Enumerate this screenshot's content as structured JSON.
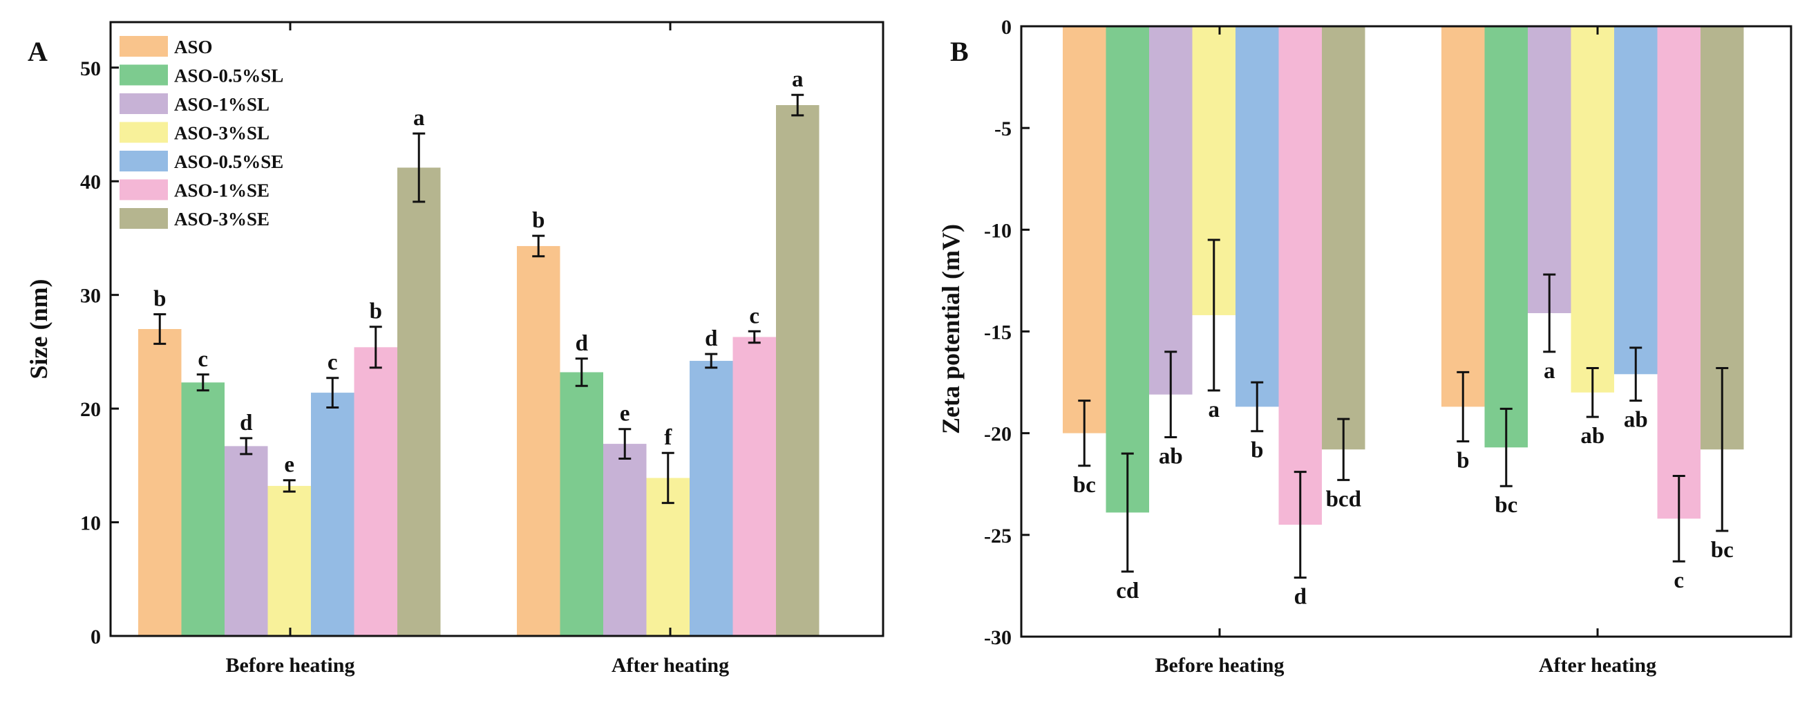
{
  "chart_data": [
    {
      "panel_label": "A",
      "type": "bar",
      "categories": [
        "Before heating",
        "After heating"
      ],
      "ylabel": "Size (nm)",
      "ylim": [
        0,
        54
      ],
      "yticks": [
        0,
        10,
        20,
        30,
        40,
        50
      ],
      "legend": {
        "placement": "top-left"
      },
      "series": [
        {
          "name": "ASO",
          "color": "#f9c48c",
          "values": [
            27.0,
            34.3
          ],
          "errors": [
            1.3,
            0.9
          ],
          "letters": [
            "b",
            "b"
          ]
        },
        {
          "name": "ASO-0.5%SL",
          "color": "#7dcb8f",
          "values": [
            22.3,
            23.2
          ],
          "errors": [
            0.7,
            1.2
          ],
          "letters": [
            "c",
            "d"
          ]
        },
        {
          "name": "ASO-1%SL",
          "color": "#c7b2d6",
          "values": [
            16.7,
            16.9
          ],
          "errors": [
            0.7,
            1.3
          ],
          "letters": [
            "d",
            "e"
          ]
        },
        {
          "name": "ASO-3%SL",
          "color": "#f8f19a",
          "values": [
            13.2,
            13.9
          ],
          "errors": [
            0.5,
            2.2
          ],
          "letters": [
            "e",
            "f"
          ]
        },
        {
          "name": "ASO-0.5%SE",
          "color": "#94bbe4",
          "values": [
            21.4,
            24.2
          ],
          "errors": [
            1.3,
            0.6
          ],
          "letters": [
            "c",
            "d"
          ]
        },
        {
          "name": "ASO-1%SE",
          "color": "#f4b7d6",
          "values": [
            25.4,
            26.3
          ],
          "errors": [
            1.8,
            0.5
          ],
          "letters": [
            "b",
            "c"
          ]
        },
        {
          "name": "ASO-3%SE",
          "color": "#b5b58f",
          "values": [
            41.2,
            46.7
          ],
          "errors": [
            3.0,
            0.9
          ],
          "letters": [
            "a",
            "a"
          ]
        }
      ]
    },
    {
      "panel_label": "B",
      "type": "bar",
      "categories": [
        "Before heating",
        "After heating"
      ],
      "ylabel": "Zeta potential (mV)",
      "ylim": [
        -30,
        0
      ],
      "yticks": [
        -30,
        -25,
        -20,
        -15,
        -10,
        -5,
        0
      ],
      "series": [
        {
          "name": "ASO",
          "color": "#f9c48c",
          "values": [
            -20.0,
            -18.7
          ],
          "errors": [
            1.6,
            1.7
          ],
          "letters": [
            "bc",
            "b"
          ]
        },
        {
          "name": "ASO-0.5%SL",
          "color": "#7dcb8f",
          "values": [
            -23.9,
            -20.7
          ],
          "errors": [
            2.9,
            1.9
          ],
          "letters": [
            "cd",
            "bc"
          ]
        },
        {
          "name": "ASO-1%SL",
          "color": "#c7b2d6",
          "values": [
            -18.1,
            -14.1
          ],
          "errors": [
            2.1,
            1.9
          ],
          "letters": [
            "ab",
            "a"
          ]
        },
        {
          "name": "ASO-3%SL",
          "color": "#f8f19a",
          "values": [
            -14.2,
            -18.0
          ],
          "errors": [
            3.7,
            1.2
          ],
          "letters": [
            "a",
            "ab"
          ]
        },
        {
          "name": "ASO-0.5%SE",
          "color": "#94bbe4",
          "values": [
            -18.7,
            -17.1
          ],
          "errors": [
            1.2,
            1.3
          ],
          "letters": [
            "b",
            "ab"
          ]
        },
        {
          "name": "ASO-1%SE",
          "color": "#f4b7d6",
          "values": [
            -24.5,
            -24.2
          ],
          "errors": [
            2.6,
            2.1
          ],
          "letters": [
            "d",
            "c"
          ]
        },
        {
          "name": "ASO-3%SE",
          "color": "#b5b58f",
          "values": [
            -20.8,
            -20.8
          ],
          "errors": [
            1.5,
            4.0
          ],
          "letters": [
            "bcd",
            "bc"
          ]
        }
      ]
    }
  ]
}
